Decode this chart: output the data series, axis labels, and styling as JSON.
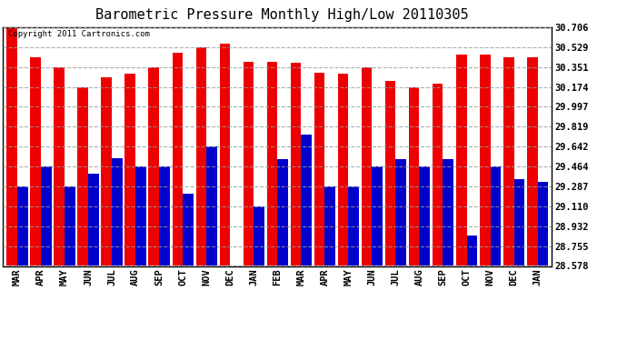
{
  "title": "Barometric Pressure Monthly High/Low 20110305",
  "copyright": "Copyright 2011 Cartronics.com",
  "months": [
    "MAR",
    "APR",
    "MAY",
    "JUN",
    "JUL",
    "AUG",
    "SEP",
    "OCT",
    "NOV",
    "DEC",
    "JAN",
    "FEB",
    "MAR",
    "APR",
    "MAY",
    "JUN",
    "JUL",
    "AUG",
    "SEP",
    "OCT",
    "NOV",
    "DEC",
    "JAN"
  ],
  "highs": [
    30.706,
    30.44,
    30.351,
    30.174,
    30.26,
    30.29,
    30.351,
    30.48,
    30.529,
    30.56,
    30.4,
    30.4,
    30.39,
    30.3,
    30.29,
    30.351,
    30.23,
    30.174,
    30.2,
    30.46,
    30.46,
    30.44,
    30.44
  ],
  "lows": [
    29.287,
    29.464,
    29.287,
    29.4,
    29.54,
    29.464,
    29.464,
    29.22,
    29.642,
    28.578,
    29.11,
    29.53,
    29.75,
    29.287,
    29.287,
    29.464,
    29.53,
    29.464,
    29.53,
    28.85,
    29.464,
    29.35,
    29.33
  ],
  "yticks": [
    28.578,
    28.755,
    28.932,
    29.11,
    29.287,
    29.464,
    29.642,
    29.819,
    29.997,
    30.174,
    30.351,
    30.529,
    30.706
  ],
  "ymin": 28.578,
  "ymax": 30.706,
  "bar_color_high": "#EE0000",
  "bar_color_low": "#0000CC",
  "bg_color": "#FFFFFF",
  "grid_color": "#999999",
  "title_fontsize": 11,
  "copyright_fontsize": 6.5
}
